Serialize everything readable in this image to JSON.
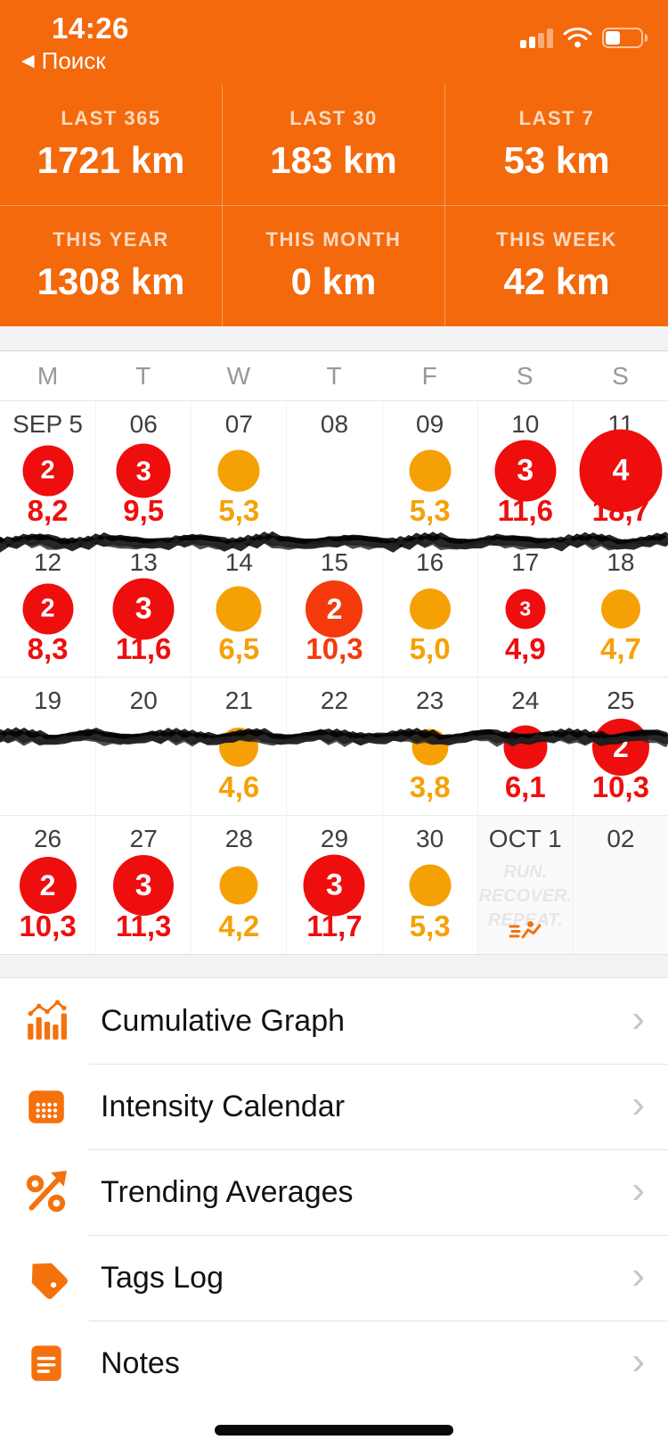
{
  "status_bar": {
    "time": "14:26",
    "back_label": "Поиск"
  },
  "stats": {
    "cells": [
      {
        "label": "LAST 365",
        "value": "1721 km"
      },
      {
        "label": "LAST 30",
        "value": "183 km"
      },
      {
        "label": "LAST 7",
        "value": "53 km"
      },
      {
        "label": "THIS YEAR",
        "value": "1308 km"
      },
      {
        "label": "THIS MONTH",
        "value": "0 km"
      },
      {
        "label": "THIS WEEK",
        "value": "42 km"
      }
    ]
  },
  "calendar": {
    "day_headers": [
      "M",
      "T",
      "W",
      "T",
      "F",
      "S",
      "S"
    ],
    "weeks": [
      [
        {
          "date": "SEP 5",
          "count": "2",
          "distance": "8,2",
          "color": "red"
        },
        {
          "date": "06",
          "count": "3",
          "distance": "9,5",
          "color": "red"
        },
        {
          "date": "07",
          "count": "",
          "distance": "5,3",
          "color": "orange"
        },
        {
          "date": "08"
        },
        {
          "date": "09",
          "count": "",
          "distance": "5,3",
          "color": "orange"
        },
        {
          "date": "10",
          "count": "3",
          "distance": "11,6",
          "color": "red"
        },
        {
          "date": "11",
          "count": "4",
          "distance": "18,7",
          "color": "red"
        }
      ],
      [
        {
          "date": "12",
          "count": "2",
          "distance": "8,3",
          "color": "red"
        },
        {
          "date": "13",
          "count": "3",
          "distance": "11,6",
          "color": "red"
        },
        {
          "date": "14",
          "count": "",
          "distance": "6,5",
          "color": "orange"
        },
        {
          "date": "15",
          "count": "2",
          "distance": "10,3",
          "color": "vermillion"
        },
        {
          "date": "16",
          "count": "",
          "distance": "5,0",
          "color": "orange"
        },
        {
          "date": "17",
          "count": "3",
          "distance": "4,9",
          "color": "red"
        },
        {
          "date": "18",
          "count": "",
          "distance": "4,7",
          "color": "orange"
        }
      ],
      [
        {
          "date": "19"
        },
        {
          "date": "20"
        },
        {
          "date": "21",
          "count": "",
          "distance": "4,6",
          "color": "orange"
        },
        {
          "date": "22"
        },
        {
          "date": "23",
          "count": "",
          "distance": "3,8",
          "color": "orange"
        },
        {
          "date": "24",
          "count": "",
          "distance": "6,1",
          "color": "red"
        },
        {
          "date": "25",
          "count": "2",
          "distance": "10,3",
          "color": "red"
        }
      ],
      [
        {
          "date": "26",
          "count": "2",
          "distance": "10,3",
          "color": "red"
        },
        {
          "date": "27",
          "count": "3",
          "distance": "11,3",
          "color": "red"
        },
        {
          "date": "28",
          "count": "",
          "distance": "4,2",
          "color": "orange"
        },
        {
          "date": "29",
          "count": "3",
          "distance": "11,7",
          "color": "red"
        },
        {
          "date": "30",
          "count": "",
          "distance": "5,3",
          "color": "orange"
        },
        {
          "date": "OCT 1",
          "watermark": [
            "RUN.",
            "RECOVER.",
            "REPEAT."
          ],
          "has_runner_icon": true,
          "muted": true
        },
        {
          "date": "02",
          "muted": true
        }
      ]
    ]
  },
  "menu": {
    "items": [
      {
        "label": "Cumulative Graph",
        "icon": "cumulative-graph-icon"
      },
      {
        "label": "Intensity Calendar",
        "icon": "intensity-calendar-icon"
      },
      {
        "label": "Trending Averages",
        "icon": "trending-averages-icon"
      },
      {
        "label": "Tags Log",
        "icon": "tags-log-icon"
      },
      {
        "label": "Notes",
        "icon": "notes-icon"
      }
    ],
    "chevron": "›"
  },
  "colors": {
    "accent_orange": "#F4690B",
    "icon_orange": "#F4710C",
    "activity_red": "#EE0E0E",
    "activity_orange": "#F5A106",
    "activity_vermillion": "#F43A0C"
  }
}
